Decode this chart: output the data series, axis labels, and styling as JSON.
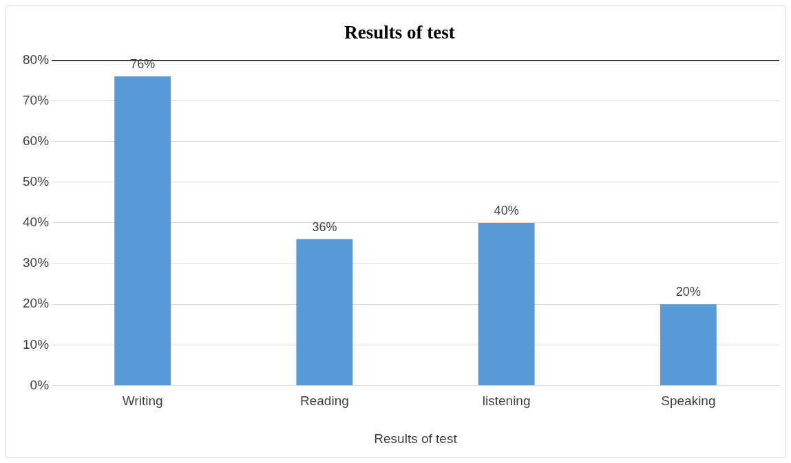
{
  "chart_data": {
    "type": "bar",
    "title": "Results of test",
    "xlabel": "Results of test",
    "categories": [
      "Writing",
      "Reading",
      "listening",
      "Speaking"
    ],
    "values": [
      76,
      36,
      40,
      20
    ],
    "value_labels": [
      "76%",
      "36%",
      "40%",
      "20%"
    ],
    "color": "#5b9bd5",
    "ylim": [
      0,
      80
    ],
    "yticks": [
      {
        "value": 0,
        "label": "0%"
      },
      {
        "value": 10,
        "label": "10%"
      },
      {
        "value": 20,
        "label": "20%"
      },
      {
        "value": 30,
        "label": "30%"
      },
      {
        "value": 40,
        "label": "40%"
      },
      {
        "value": 50,
        "label": "50%"
      },
      {
        "value": 60,
        "label": "60%"
      },
      {
        "value": 70,
        "label": "70%"
      },
      {
        "value": 80,
        "label": "80%"
      }
    ],
    "grid": "y",
    "legend": false
  }
}
